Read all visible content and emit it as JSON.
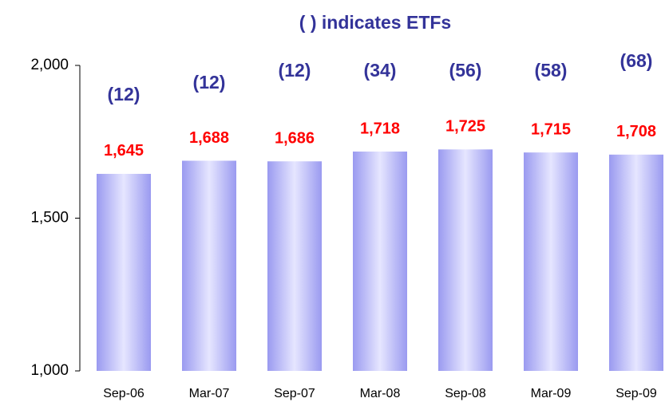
{
  "chart_data": {
    "type": "bar",
    "title": "( ) indicates ETFs",
    "categories": [
      "Sep-06",
      "Mar-07",
      "Sep-07",
      "Mar-08",
      "Sep-08",
      "Mar-09",
      "Sep-09"
    ],
    "values": [
      1645,
      1688,
      1686,
      1718,
      1725,
      1715,
      1708
    ],
    "value_labels": [
      "1,645",
      "1,688",
      "1,686",
      "1,718",
      "1,725",
      "1,715",
      "1,708"
    ],
    "annotations": [
      "(12)",
      "(12)",
      "(12)",
      "(34)",
      "(56)",
      "(58)",
      "(68)"
    ],
    "color": "#9f9ff0",
    "ylim": [
      1000,
      2000
    ],
    "yticks": [
      {
        "value": 1000,
        "label": "1,000"
      },
      {
        "value": 1500,
        "label": "1,500"
      },
      {
        "value": 2000,
        "label": "2,000"
      }
    ],
    "grid": false
  }
}
